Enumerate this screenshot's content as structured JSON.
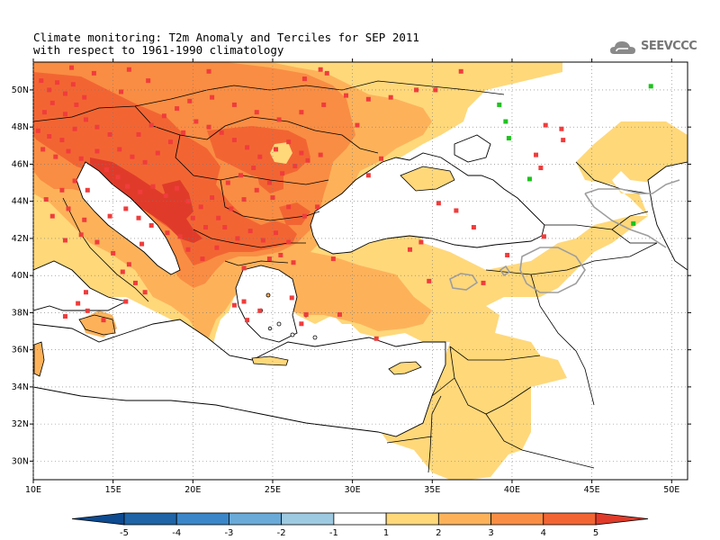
{
  "title": {
    "line1": "Climate monitoring: T2m Anomaly and Terciles for SEP 2011",
    "line2": "with respect to 1961-1990 climatology"
  },
  "logo": {
    "text": "SEEVCCC",
    "icon": "cloud-icon"
  },
  "map": {
    "lon_range": [
      10,
      51
    ],
    "lat_range": [
      29,
      51.5
    ],
    "x_ticks": [
      {
        "lon": 10,
        "label": "10E"
      },
      {
        "lon": 15,
        "label": "15E"
      },
      {
        "lon": 20,
        "label": "20E"
      },
      {
        "lon": 25,
        "label": "25E"
      },
      {
        "lon": 30,
        "label": "30E"
      },
      {
        "lon": 35,
        "label": "35E"
      },
      {
        "lon": 40,
        "label": "40E"
      },
      {
        "lon": 45,
        "label": "45E"
      },
      {
        "lon": 50,
        "label": "50E"
      }
    ],
    "y_ticks": [
      {
        "lat": 30,
        "label": "30N"
      },
      {
        "lat": 32,
        "label": "32N"
      },
      {
        "lat": 34,
        "label": "34N"
      },
      {
        "lat": 36,
        "label": "36N"
      },
      {
        "lat": 38,
        "label": "38N"
      },
      {
        "lat": 40,
        "label": "40N"
      },
      {
        "lat": 42,
        "label": "42N"
      },
      {
        "lat": 44,
        "label": "44N"
      },
      {
        "lat": 46,
        "label": "46N"
      },
      {
        "lat": 48,
        "label": "48N"
      },
      {
        "lat": 50,
        "label": "50N"
      }
    ],
    "colors": {
      "c1_2": "#ffd87a",
      "c2_3": "#fdb25a",
      "c3_4": "#f98d43",
      "c4_5": "#f26533",
      "c5p": "#e03b2a",
      "marker_upper": "#f03c3c",
      "marker_lower": "#1fc21f",
      "coast": "#000000",
      "neg_contour": "#9e9e9e"
    }
  },
  "colorbar": {
    "labels": [
      "-5",
      "-4",
      "-3",
      "-2",
      "-1",
      "1",
      "2",
      "3",
      "4",
      "5"
    ],
    "colors": [
      "#0d4a8f",
      "#1e64a6",
      "#3a86c8",
      "#6aaad8",
      "#9ecae1",
      "#ffffff",
      "#ffd87a",
      "#fdb25a",
      "#f98d43",
      "#f26533",
      "#e03b2a"
    ]
  }
}
